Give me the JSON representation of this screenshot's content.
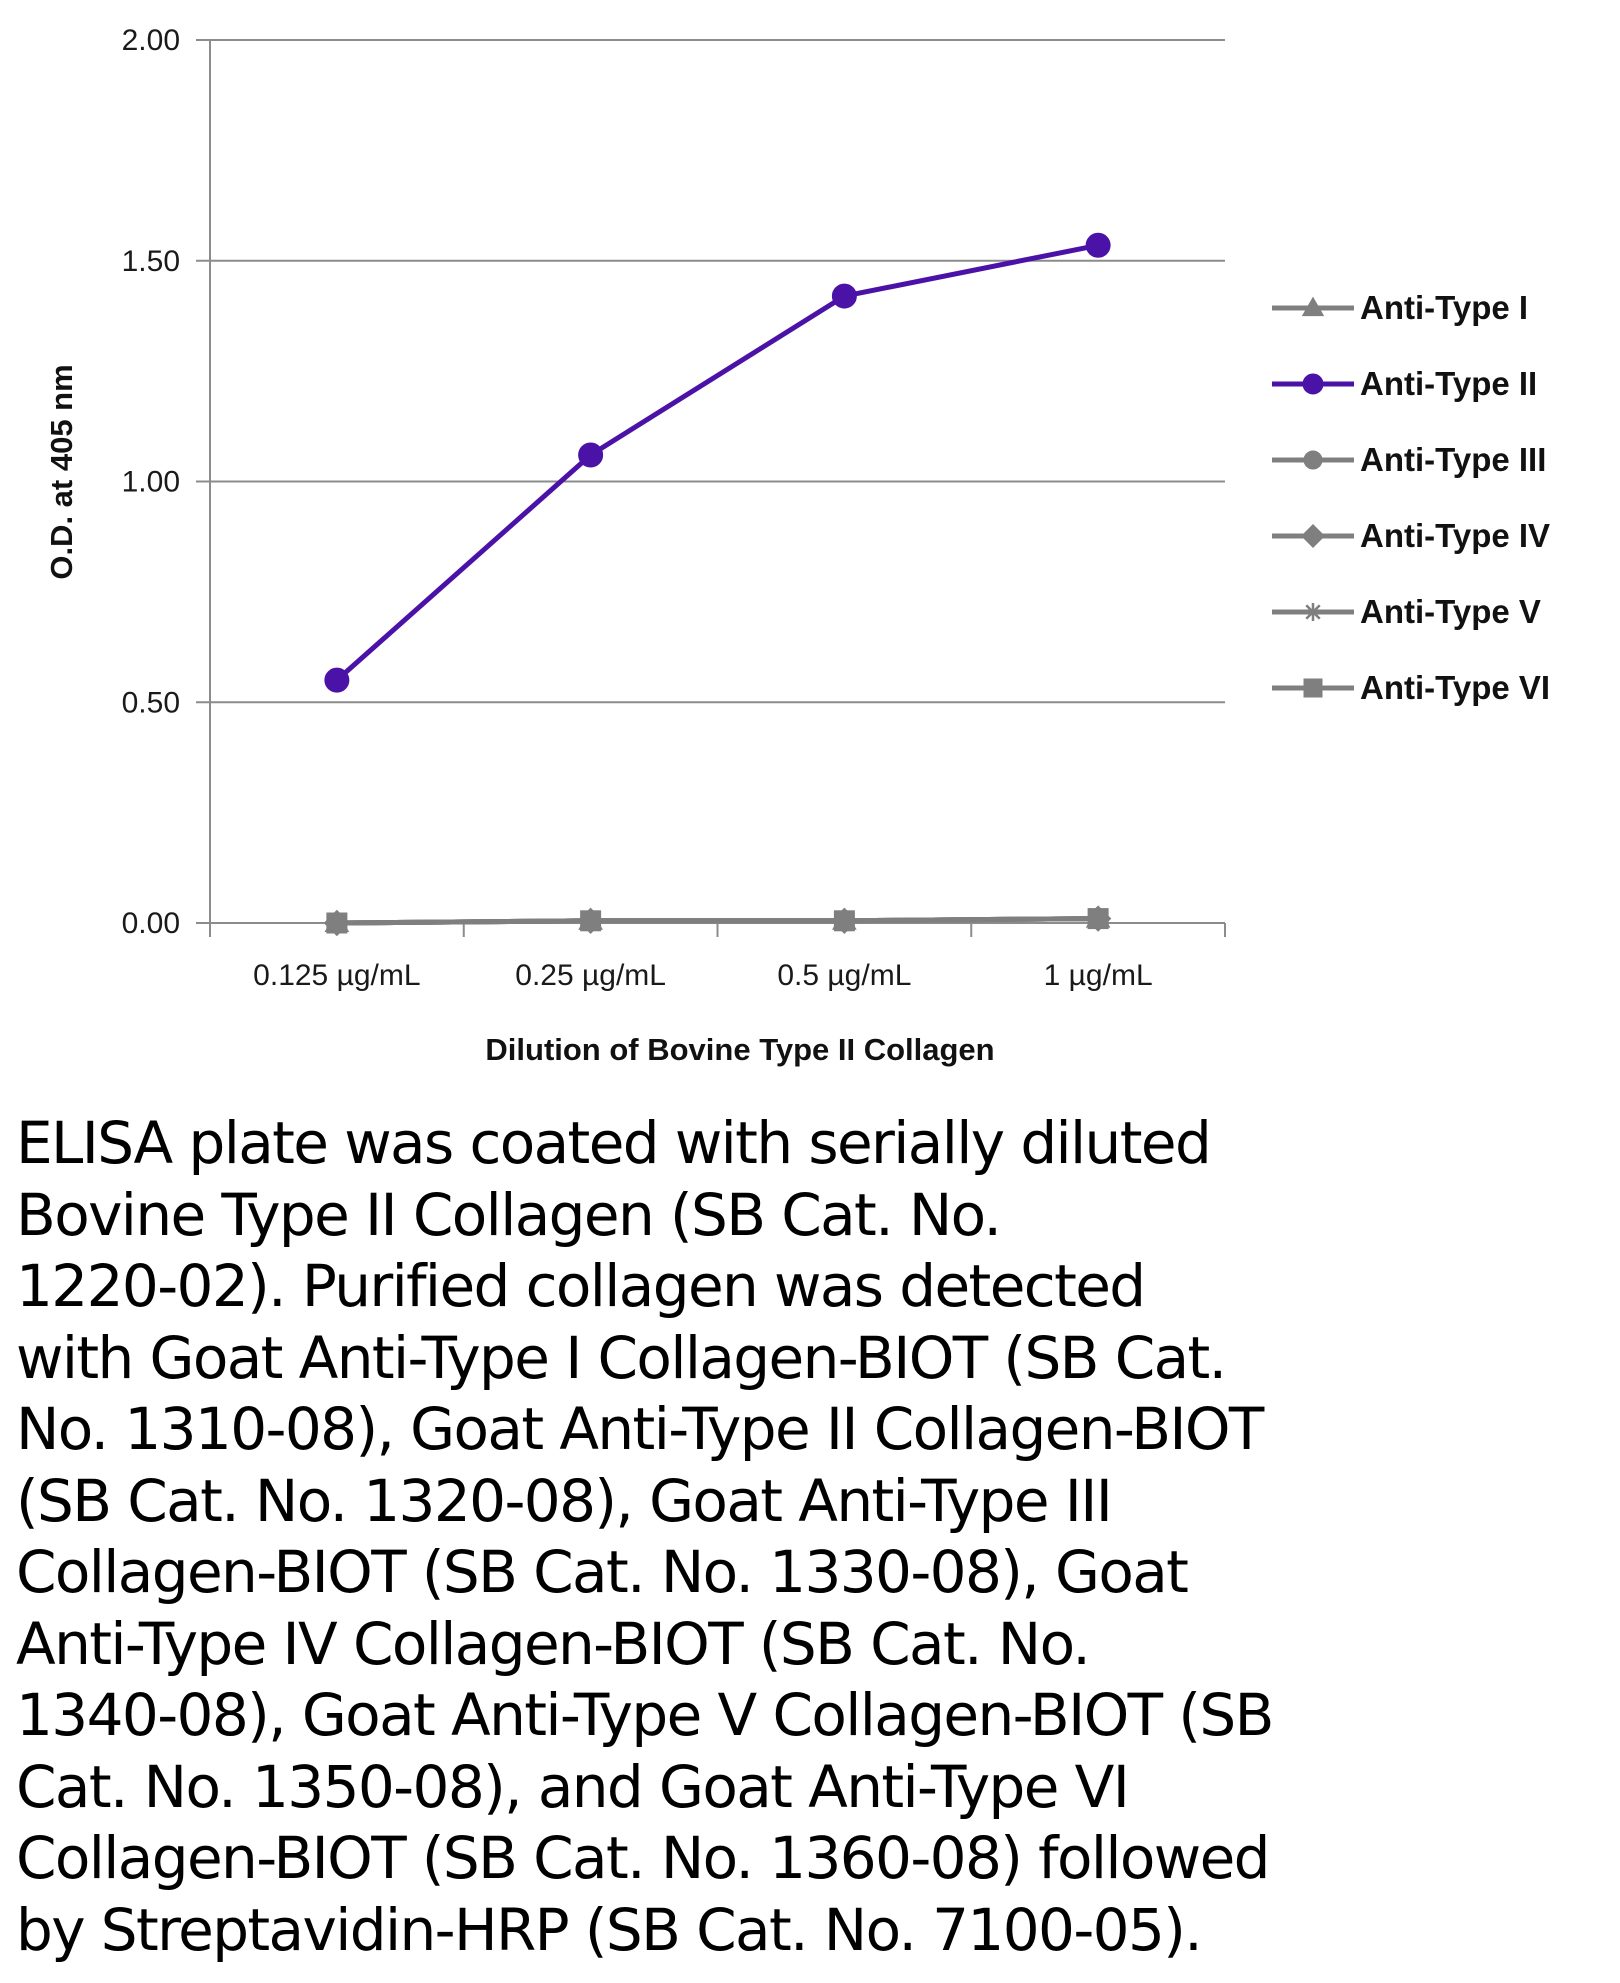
{
  "chart_data": {
    "type": "line",
    "title": "",
    "xlabel": "Dilution of Bovine Type II Collagen",
    "ylabel": "O.D. at 405 nm",
    "categories": [
      "0.125 µg/mL",
      "0.25 µg/mL",
      "0.5 µg/mL",
      "1 µg/mL"
    ],
    "ylim": [
      0,
      2
    ],
    "yticks": [
      "0.00",
      "0.50",
      "1.00",
      "1.50",
      "2.00"
    ],
    "grid": "horizontal",
    "legend_position": "right",
    "series": [
      {
        "name": "Anti-Type I",
        "values": [
          0.0,
          0.005,
          0.005,
          0.01
        ],
        "color": "#7f7f7f",
        "marker": "triangle"
      },
      {
        "name": "Anti-Type II",
        "values": [
          0.55,
          1.06,
          1.42,
          1.535
        ],
        "color": "#4b12a8",
        "marker": "circle"
      },
      {
        "name": "Anti-Type III",
        "values": [
          0.0,
          0.005,
          0.005,
          0.01
        ],
        "color": "#7f7f7f",
        "marker": "circle"
      },
      {
        "name": "Anti-Type IV",
        "values": [
          0.0,
          0.005,
          0.005,
          0.01
        ],
        "color": "#7f7f7f",
        "marker": "diamond"
      },
      {
        "name": "Anti-Type V",
        "values": [
          0.0,
          0.005,
          0.005,
          0.01
        ],
        "color": "#7f7f7f",
        "marker": "star"
      },
      {
        "name": "Anti-Type VI",
        "values": [
          0.0,
          0.005,
          0.005,
          0.01
        ],
        "color": "#7f7f7f",
        "marker": "square"
      }
    ]
  },
  "caption": "ELISA plate was coated with serially diluted\nBovine Type II Collagen (SB Cat. No.\n1220-02).  Purified collagen was detected\nwith Goat Anti-Type I Collagen-BIOT (SB Cat.\nNo. 1310-08), Goat Anti-Type II Collagen-BIOT\n(SB Cat. No. 1320-08), Goat Anti-Type III\nCollagen-BIOT (SB Cat. No. 1330-08), Goat\nAnti-Type IV Collagen-BIOT (SB Cat. No.\n1340-08), Goat Anti-Type V Collagen-BIOT (SB\nCat. No. 1350-08), and Goat Anti-Type VI\nCollagen-BIOT (SB Cat. No. 1360-08) followed\nby Streptavidin-HRP (SB Cat. No. 7100-05)."
}
